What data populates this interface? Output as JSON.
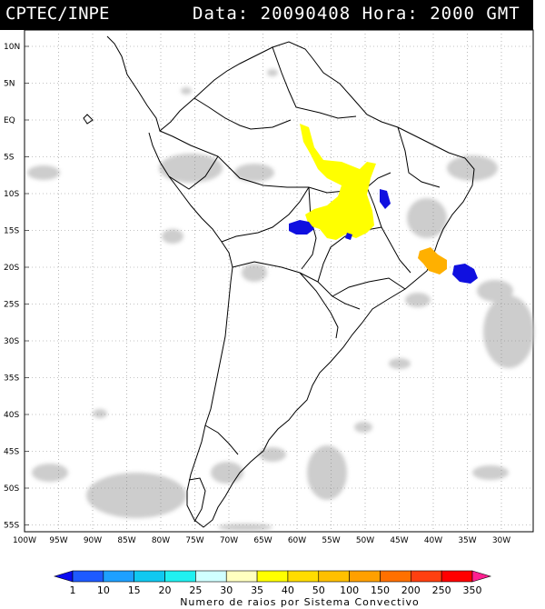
{
  "header": {
    "left": "CPTEC/INPE",
    "right": "Data: 20090408 Hora: 2000 GMT"
  },
  "axes": {
    "lat_labels": [
      "10N",
      "5N",
      "EQ",
      "5S",
      "10S",
      "15S",
      "20S",
      "25S",
      "30S",
      "35S",
      "40S",
      "45S",
      "50S",
      "55S"
    ],
    "lon_labels": [
      "100W",
      "95W",
      "90W",
      "85W",
      "80W",
      "75W",
      "70W",
      "65W",
      "60W",
      "55W",
      "50W",
      "45W",
      "40W",
      "35W",
      "30W"
    ]
  },
  "colorbar": {
    "labels": [
      "1",
      "10",
      "15",
      "20",
      "25",
      "30",
      "35",
      "40",
      "50",
      "100",
      "150",
      "200",
      "250",
      "350"
    ],
    "title": "Numero de raios por Sistema Convectivo",
    "colors": [
      "#0a0af0",
      "#1e5aff",
      "#1ea0ff",
      "#10c8f0",
      "#20f0f0",
      "#d0ffff",
      "#ffffc0",
      "#ffff00",
      "#ffdc00",
      "#ffc000",
      "#ffa000",
      "#ff7000",
      "#ff4010",
      "#ff0000",
      "#ff2090"
    ]
  },
  "map_data": {
    "lon_range": [
      -100,
      -28
    ],
    "lat_range": [
      -56,
      13
    ],
    "convective_systems": [
      {
        "color": "yellow",
        "lon": -55,
        "lat": -10
      },
      {
        "color": "blue",
        "lon": -60,
        "lat": -14.5
      },
      {
        "color": "blue",
        "lon": -49.5,
        "lat": -11
      },
      {
        "color": "orange",
        "lon": -39.5,
        "lat": -19.5
      },
      {
        "color": "blue",
        "lon": -34.5,
        "lat": -21
      }
    ]
  }
}
